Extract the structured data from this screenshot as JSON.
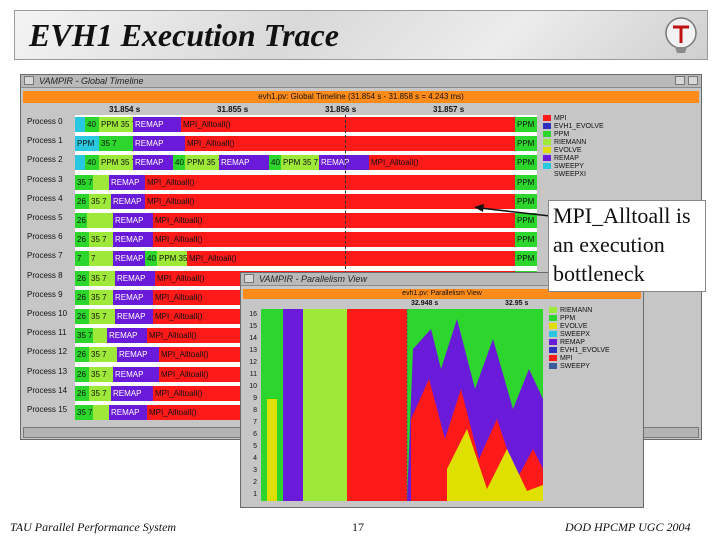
{
  "slide": {
    "title": "EVH1 Execution Trace",
    "annotation": "MPI_Alltoall is an execution bottleneck",
    "footer_left": "TAU Parallel Performance System",
    "footer_center": "17",
    "footer_right": "DOD HPCMP UGC 2004"
  },
  "timeline_window": {
    "title": "VAMPIR - Global Timeline",
    "plot_title": "evh1.pv: Global Timeline (31.854 s - 31.858 s = 4.243 ms)",
    "ticks": [
      "31.854 s",
      "31.855 s",
      "31.856 s",
      "31.857 s"
    ],
    "processes": [
      {
        "label": "Process 0"
      },
      {
        "label": "Process 1"
      },
      {
        "label": "Process 2"
      },
      {
        "label": "Process 3"
      },
      {
        "label": "Process 4"
      },
      {
        "label": "Process 5"
      },
      {
        "label": "Process 6"
      },
      {
        "label": "Process 7"
      },
      {
        "label": "Process 8"
      },
      {
        "label": "Process 9"
      },
      {
        "label": "Process 10"
      },
      {
        "label": "Process 11"
      },
      {
        "label": "Process 12"
      },
      {
        "label": "Process 13"
      },
      {
        "label": "Process 14"
      },
      {
        "label": "Process 15"
      }
    ],
    "legend": [
      {
        "label": "MPI",
        "color": "#ff1a1a"
      },
      {
        "label": "EVH1_EVOLVE",
        "color": "#3030c0"
      },
      {
        "label": "PPM",
        "color": "#2cd62c"
      },
      {
        "label": "RIEMANN",
        "color": "#9ee83a"
      },
      {
        "label": "EVOLVE",
        "color": "#e0e000"
      },
      {
        "label": "REMAP",
        "color": "#6a1ad9"
      },
      {
        "label": "SWEEPY",
        "color": "#29c8e0"
      },
      {
        "label": "SWEEPXI",
        "color": "#c8c8c8"
      }
    ],
    "seg_text": {
      "ppm": "PPM",
      "ppm35": "PPM 35 7",
      "remap": "REMAP",
      "mpi": "MPI_Alltoall()",
      "n40": "40",
      "n26": "26",
      "n35": "35 7",
      "n2635": "26 35 7",
      "n7": "7",
      "n357": "35 7"
    }
  },
  "parallelism_window": {
    "title": "VAMPIR - Parallelism View",
    "plot_title": "evh1.pv: Parallelism View",
    "ticks": [
      "32.948 s",
      "32.95 s"
    ],
    "y_labels": [
      "16",
      "15",
      "14",
      "13",
      "12",
      "11",
      "10",
      "9",
      "8",
      "7",
      "6",
      "5",
      "4",
      "3",
      "2",
      "1"
    ],
    "legend": [
      {
        "label": "RIEMANN",
        "color": "#9ee83a"
      },
      {
        "label": "PPM",
        "color": "#2cd62c"
      },
      {
        "label": "EVOLVE",
        "color": "#e0e000"
      },
      {
        "label": "SWEEPX",
        "color": "#29c8e0"
      },
      {
        "label": "REMAP",
        "color": "#6a1ad9"
      },
      {
        "label": "EVH1_EVOLVE",
        "color": "#3030c0"
      },
      {
        "label": "MPI",
        "color": "#ff1a1a"
      },
      {
        "label": "SWEEPY",
        "color": "#3a5a9a"
      }
    ]
  }
}
